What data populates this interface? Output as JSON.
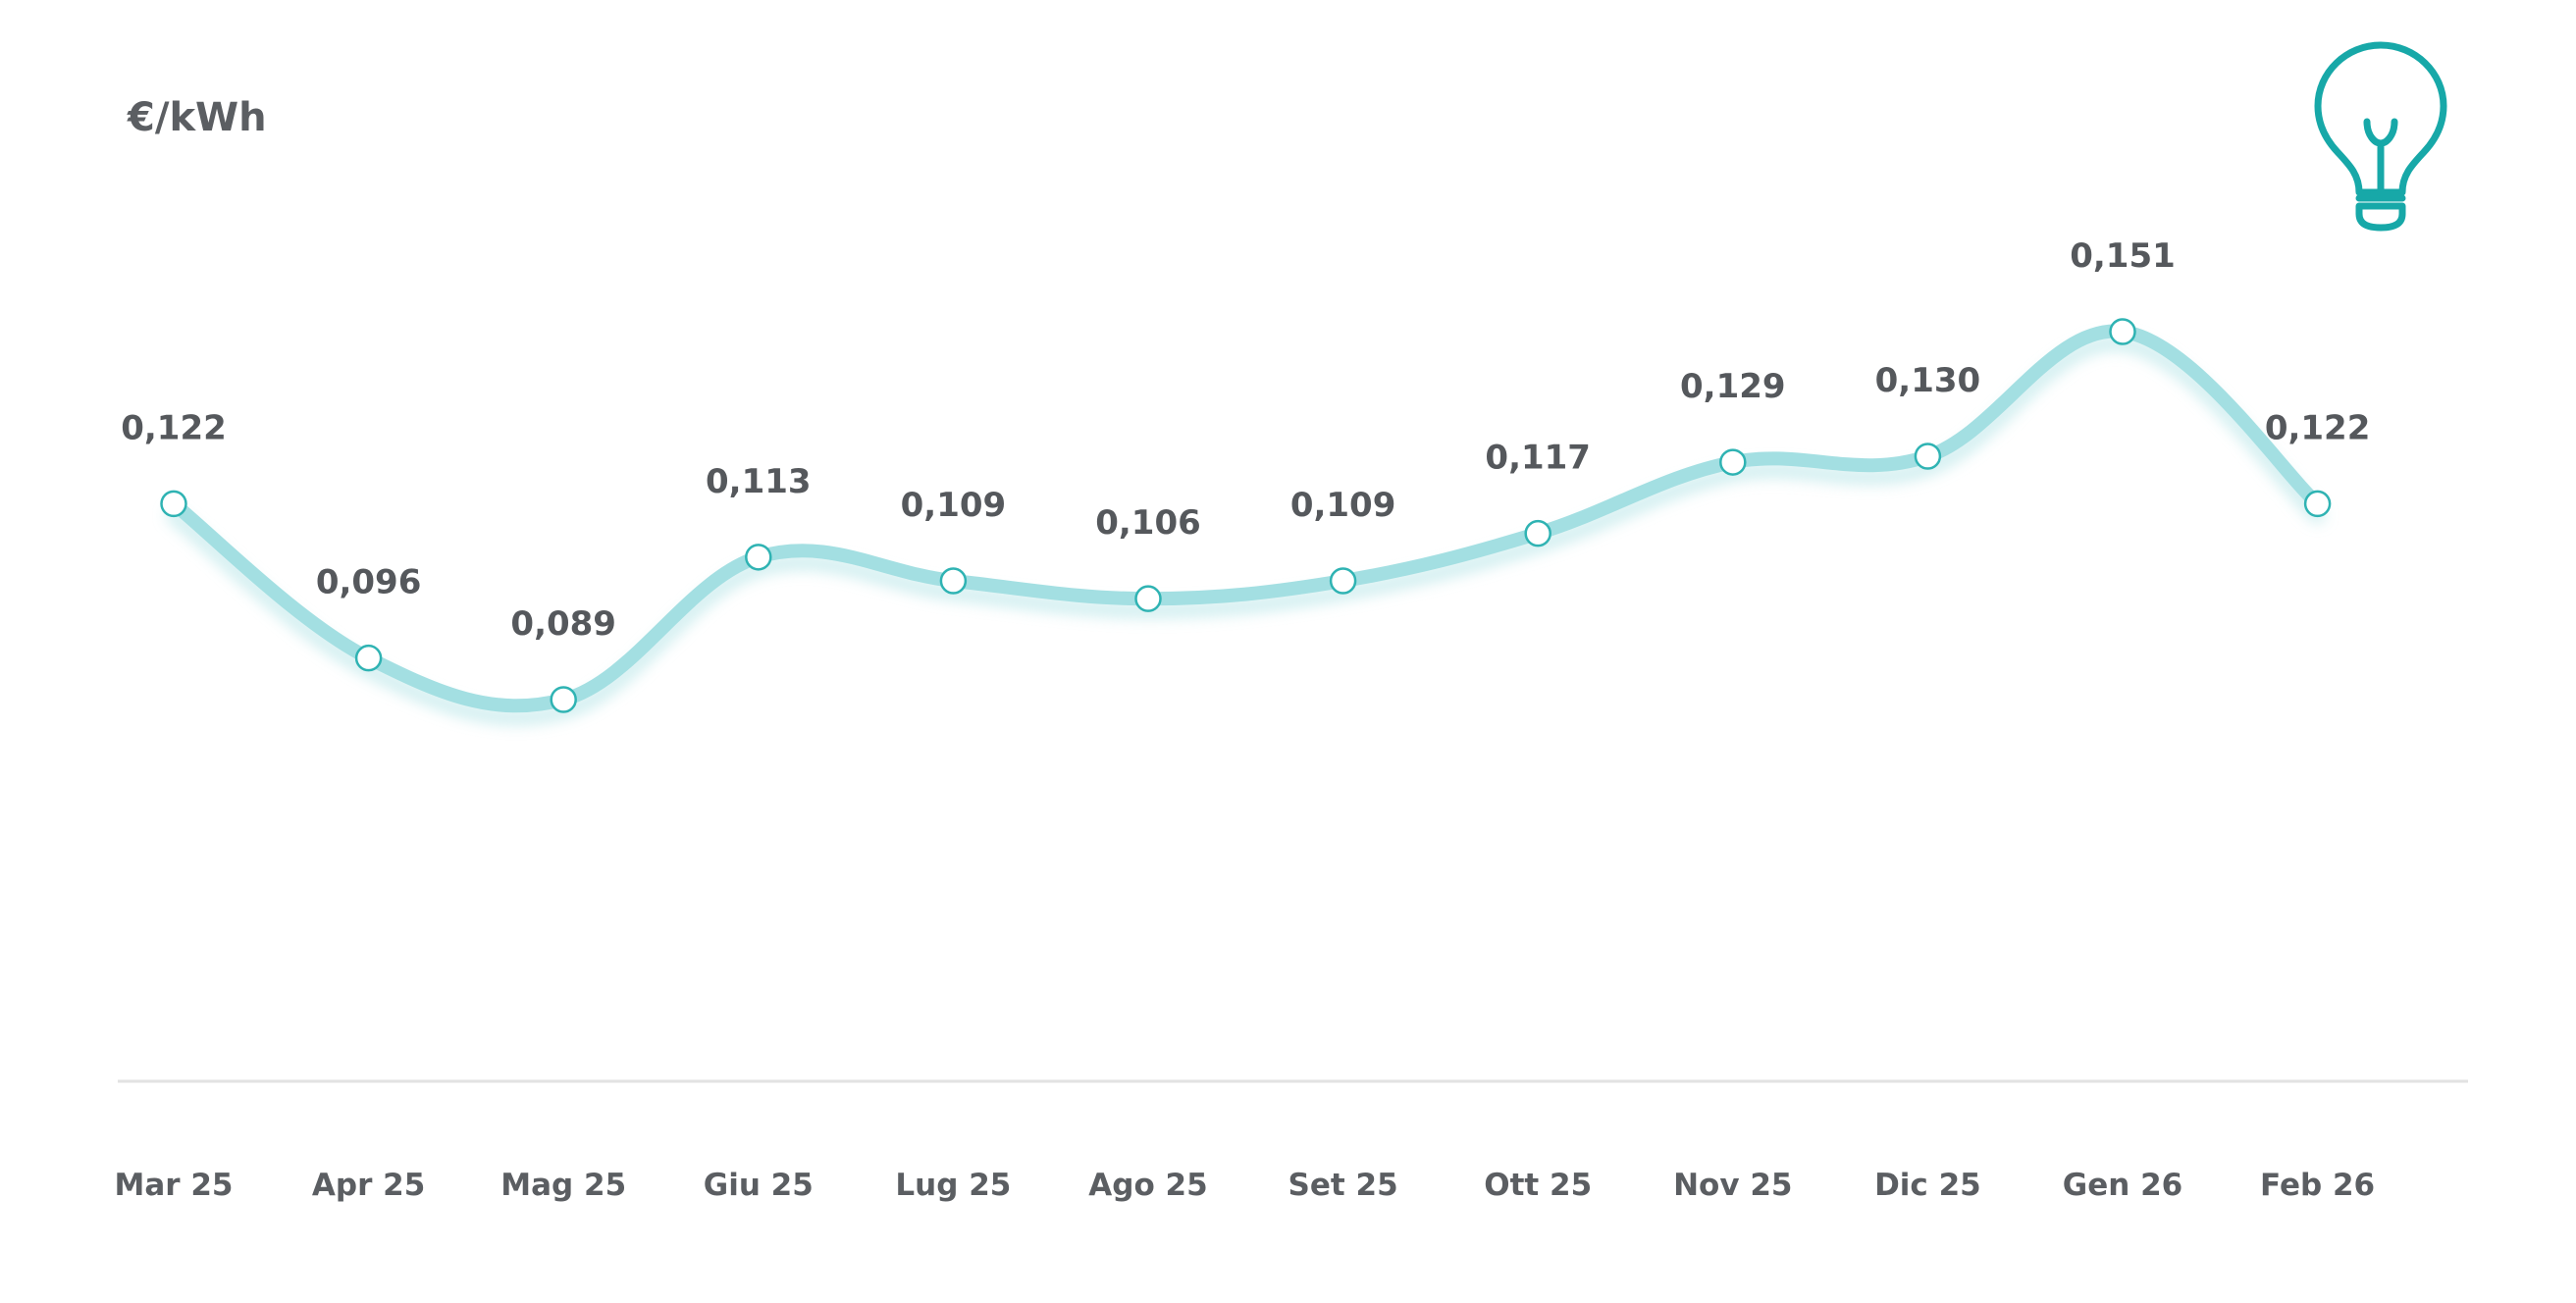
{
  "chart_data": {
    "type": "line",
    "ylabel": "€/kWh",
    "categories": [
      "Mar 25",
      "Apr 25",
      "Mag 25",
      "Giu 25",
      "Lug 25",
      "Ago 25",
      "Set 25",
      "Ott 25",
      "Nov 25",
      "Dic 25",
      "Gen 26",
      "Feb 26"
    ],
    "series": [
      {
        "values": [
          0.122,
          0.096,
          0.089,
          0.113,
          0.109,
          0.106,
          0.109,
          0.117,
          0.129,
          0.13,
          0.151,
          0.122
        ],
        "labels": [
          "0,122",
          "0,096",
          "0,089",
          "0,113",
          "0,109",
          "0,106",
          "0,109",
          "0,117",
          "0,129",
          "0,130",
          "0,151",
          "0,122"
        ]
      }
    ],
    "grid": false,
    "legend": "none",
    "smooth": true
  },
  "icon": "lightbulb-icon",
  "colors": {
    "line": "#a3dfe2",
    "accent": "#17a8a8",
    "marker_fill": "#ffffff",
    "marker_stroke": "#2fb3b3",
    "baseline": "#e2e2e2"
  }
}
